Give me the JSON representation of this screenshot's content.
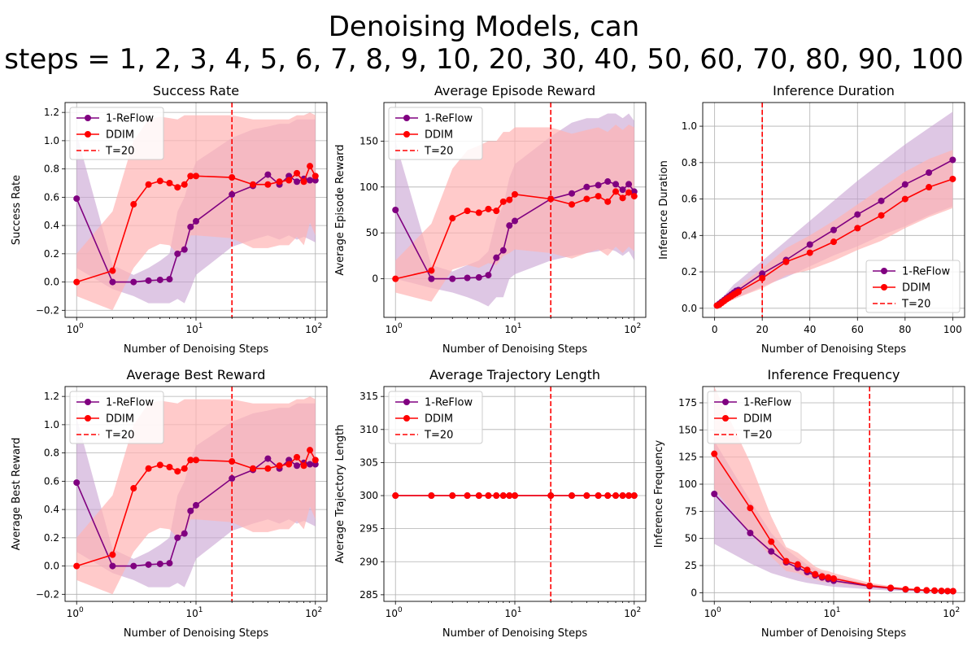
{
  "figure": {
    "title_line1": "Denoising Models, can",
    "title_line2": "steps = 1, 2, 3, 4, 5, 6, 7, 8, 9, 10, 20, 30, 40, 50, 60, 70, 80, 90, 100"
  },
  "colors": {
    "reflow": "#800080",
    "reflow_band": "#c8a2d2",
    "ddim": "#ff0000",
    "ddim_band": "#ffb3b3",
    "threshold": "#ff0000",
    "grid": "#b0b0b0"
  },
  "chart_data": [
    {
      "type": "line",
      "title": "Success Rate",
      "xlabel": "Number of Denoising Steps",
      "ylabel": "Success Rate",
      "xscale": "log",
      "xlim": [
        0.8,
        125
      ],
      "ylim": [
        -0.25,
        1.27
      ],
      "yticks": [
        -0.2,
        0.0,
        0.2,
        0.4,
        0.6,
        0.8,
        1.0,
        1.2
      ],
      "ytick_labels": [
        "−0.2",
        "0.0",
        "0.2",
        "0.4",
        "0.6",
        "0.8",
        "1.0",
        "1.2"
      ],
      "legend_position": "top-left",
      "threshold": {
        "x": 20,
        "label": "T=20"
      },
      "x": [
        1,
        2,
        3,
        4,
        5,
        6,
        7,
        8,
        9,
        10,
        20,
        30,
        40,
        50,
        60,
        70,
        80,
        90,
        100
      ],
      "series": [
        {
          "name": "1-ReFlow",
          "values": [
            0.59,
            0.0,
            0.0,
            0.01,
            0.015,
            0.02,
            0.2,
            0.23,
            0.39,
            0.43,
            0.62,
            0.68,
            0.76,
            0.69,
            0.75,
            0.71,
            0.73,
            0.72,
            0.72
          ],
          "band_upper": [
            1.05,
            0.12,
            0.05,
            0.1,
            0.15,
            0.2,
            0.5,
            0.6,
            0.75,
            0.85,
            1.02,
            1.08,
            1.1,
            1.12,
            1.12,
            1.15,
            1.15,
            1.15,
            1.15
          ],
          "band_lower": [
            0.1,
            -0.05,
            -0.1,
            -0.15,
            -0.15,
            -0.15,
            -0.12,
            -0.15,
            -0.05,
            0.05,
            0.25,
            0.3,
            0.33,
            0.3,
            0.33,
            0.3,
            0.32,
            0.3,
            0.28
          ]
        },
        {
          "name": "DDIM",
          "values": [
            0.0,
            0.08,
            0.55,
            0.69,
            0.715,
            0.7,
            0.67,
            0.69,
            0.75,
            0.75,
            0.74,
            0.69,
            0.69,
            0.71,
            0.72,
            0.77,
            0.71,
            0.82,
            0.75
          ],
          "band_upper": [
            0.2,
            0.5,
            1.0,
            1.15,
            1.17,
            1.16,
            1.15,
            1.18,
            1.18,
            1.18,
            1.18,
            1.15,
            1.15,
            1.15,
            1.15,
            1.18,
            1.18,
            1.2,
            1.18
          ],
          "band_lower": [
            -0.1,
            -0.2,
            0.1,
            0.23,
            0.27,
            0.26,
            0.2,
            0.22,
            0.33,
            0.33,
            0.31,
            0.24,
            0.24,
            0.26,
            0.26,
            0.32,
            0.26,
            0.42,
            0.33
          ]
        }
      ]
    },
    {
      "type": "line",
      "title": "Average Episode Reward",
      "xlabel": "Number of Denoising Steps",
      "ylabel": "Average Episode Reward",
      "xscale": "log",
      "xlim": [
        0.8,
        125
      ],
      "ylim": [
        -42,
        192
      ],
      "yticks": [
        0,
        50,
        100,
        150
      ],
      "ytick_labels": [
        "0",
        "50",
        "100",
        "150"
      ],
      "legend_position": "top-left",
      "threshold": {
        "x": 20,
        "label": "T=20"
      },
      "x": [
        1,
        2,
        3,
        4,
        5,
        6,
        7,
        8,
        9,
        10,
        20,
        30,
        40,
        50,
        60,
        70,
        80,
        90,
        100
      ],
      "series": [
        {
          "name": "1-ReFlow",
          "values": [
            75,
            0,
            0,
            1,
            1.5,
            4,
            23,
            31,
            58,
            63,
            87,
            93,
            100,
            102,
            106,
            103,
            97,
            103,
            95
          ],
          "band_upper": [
            150,
            15,
            8,
            15,
            20,
            30,
            65,
            80,
            110,
            125,
            155,
            170,
            175,
            175,
            180,
            180,
            175,
            180,
            172
          ],
          "band_lower": [
            0,
            -10,
            -15,
            -20,
            -25,
            -30,
            -20,
            -20,
            0,
            5,
            20,
            25,
            28,
            30,
            33,
            30,
            25,
            30,
            20
          ]
        },
        {
          "name": "DDIM",
          "values": [
            0,
            9,
            66,
            74,
            72,
            76,
            74,
            84,
            86,
            92,
            87,
            81,
            87,
            90,
            84,
            95,
            88,
            94,
            90
          ],
          "band_upper": [
            20,
            60,
            120,
            140,
            145,
            150,
            150,
            160,
            160,
            165,
            165,
            158,
            162,
            165,
            160,
            168,
            162,
            168,
            165
          ],
          "band_lower": [
            -15,
            -25,
            10,
            15,
            12,
            17,
            15,
            25,
            28,
            32,
            28,
            22,
            28,
            32,
            25,
            35,
            28,
            35,
            30
          ]
        }
      ]
    },
    {
      "type": "line",
      "title": "Inference Duration",
      "xlabel": "Number of Denoising Steps",
      "ylabel": "Inference Duration",
      "xscale": "linear",
      "xlim": [
        -5,
        105
      ],
      "xticks": [
        0,
        20,
        40,
        60,
        80,
        100
      ],
      "xtick_labels": [
        "0",
        "20",
        "40",
        "60",
        "80",
        "100"
      ],
      "ylim": [
        -0.05,
        1.13
      ],
      "yticks": [
        0.0,
        0.2,
        0.4,
        0.6,
        0.8,
        1.0
      ],
      "ytick_labels": [
        "0.0",
        "0.2",
        "0.4",
        "0.6",
        "0.8",
        "1.0"
      ],
      "legend_position": "bottom-right",
      "threshold": {
        "x": 20,
        "label": "T=20"
      },
      "x": [
        1,
        2,
        3,
        4,
        5,
        6,
        7,
        8,
        9,
        10,
        20,
        30,
        40,
        50,
        60,
        70,
        80,
        90,
        100
      ],
      "series": [
        {
          "name": "1-ReFlow",
          "values": [
            0.015,
            0.025,
            0.035,
            0.045,
            0.055,
            0.065,
            0.075,
            0.085,
            0.095,
            0.1,
            0.19,
            0.265,
            0.35,
            0.43,
            0.515,
            0.59,
            0.68,
            0.745,
            0.815
          ],
          "band_upper": [
            0.025,
            0.04,
            0.055,
            0.07,
            0.085,
            0.1,
            0.115,
            0.13,
            0.14,
            0.15,
            0.26,
            0.37,
            0.48,
            0.59,
            0.7,
            0.8,
            0.9,
            0.99,
            1.08
          ],
          "band_lower": [
            0.008,
            0.015,
            0.02,
            0.028,
            0.035,
            0.04,
            0.045,
            0.05,
            0.055,
            0.06,
            0.12,
            0.17,
            0.23,
            0.29,
            0.34,
            0.4,
            0.45,
            0.51,
            0.56
          ]
        },
        {
          "name": "DDIM",
          "values": [
            0.015,
            0.02,
            0.03,
            0.04,
            0.05,
            0.058,
            0.066,
            0.075,
            0.082,
            0.09,
            0.165,
            0.255,
            0.305,
            0.365,
            0.44,
            0.51,
            0.6,
            0.665,
            0.71
          ],
          "band_upper": [
            0.025,
            0.035,
            0.045,
            0.06,
            0.07,
            0.08,
            0.09,
            0.1,
            0.11,
            0.12,
            0.22,
            0.33,
            0.4,
            0.48,
            0.57,
            0.66,
            0.75,
            0.82,
            0.87
          ],
          "band_lower": [
            0.008,
            0.012,
            0.018,
            0.025,
            0.03,
            0.036,
            0.042,
            0.048,
            0.054,
            0.06,
            0.11,
            0.18,
            0.21,
            0.26,
            0.32,
            0.37,
            0.44,
            0.5,
            0.55
          ]
        }
      ]
    },
    {
      "type": "line",
      "title": "Average Best Reward",
      "xlabel": "Number of Denoising Steps",
      "ylabel": "Average Best Reward",
      "xscale": "log",
      "xlim": [
        0.8,
        125
      ],
      "ylim": [
        -0.25,
        1.27
      ],
      "yticks": [
        -0.2,
        0.0,
        0.2,
        0.4,
        0.6,
        0.8,
        1.0,
        1.2
      ],
      "ytick_labels": [
        "−0.2",
        "0.0",
        "0.2",
        "0.4",
        "0.6",
        "0.8",
        "1.0",
        "1.2"
      ],
      "legend_position": "top-left",
      "threshold": {
        "x": 20,
        "label": "T=20"
      },
      "x": [
        1,
        2,
        3,
        4,
        5,
        6,
        7,
        8,
        9,
        10,
        20,
        30,
        40,
        50,
        60,
        70,
        80,
        90,
        100
      ],
      "series": [
        {
          "name": "1-ReFlow",
          "values": [
            0.59,
            0.0,
            0.0,
            0.01,
            0.015,
            0.02,
            0.2,
            0.23,
            0.39,
            0.43,
            0.62,
            0.68,
            0.76,
            0.69,
            0.75,
            0.71,
            0.73,
            0.72,
            0.72
          ],
          "band_upper": [
            1.05,
            0.12,
            0.05,
            0.1,
            0.15,
            0.2,
            0.5,
            0.6,
            0.75,
            0.85,
            1.02,
            1.08,
            1.1,
            1.12,
            1.12,
            1.15,
            1.15,
            1.15,
            1.15
          ],
          "band_lower": [
            0.1,
            -0.05,
            -0.1,
            -0.15,
            -0.15,
            -0.15,
            -0.12,
            -0.15,
            -0.05,
            0.05,
            0.25,
            0.3,
            0.33,
            0.3,
            0.33,
            0.3,
            0.32,
            0.3,
            0.28
          ]
        },
        {
          "name": "DDIM",
          "values": [
            0.0,
            0.08,
            0.55,
            0.69,
            0.715,
            0.7,
            0.67,
            0.69,
            0.75,
            0.75,
            0.74,
            0.69,
            0.69,
            0.71,
            0.72,
            0.77,
            0.71,
            0.82,
            0.75
          ],
          "band_upper": [
            0.2,
            0.5,
            1.0,
            1.15,
            1.17,
            1.16,
            1.15,
            1.18,
            1.18,
            1.18,
            1.18,
            1.15,
            1.15,
            1.15,
            1.15,
            1.18,
            1.18,
            1.2,
            1.18
          ],
          "band_lower": [
            -0.1,
            -0.2,
            0.1,
            0.23,
            0.27,
            0.26,
            0.2,
            0.22,
            0.33,
            0.33,
            0.31,
            0.24,
            0.24,
            0.26,
            0.26,
            0.32,
            0.26,
            0.42,
            0.33
          ]
        }
      ]
    },
    {
      "type": "line",
      "title": "Average Trajectory Length",
      "xlabel": "Number of Denoising Steps",
      "ylabel": "Average Trajectory Length",
      "xscale": "log",
      "xlim": [
        0.8,
        125
      ],
      "ylim": [
        284,
        316.5
      ],
      "yticks": [
        285,
        290,
        295,
        300,
        305,
        310,
        315
      ],
      "ytick_labels": [
        "285",
        "290",
        "295",
        "300",
        "305",
        "310",
        "315"
      ],
      "legend_position": "top-left",
      "threshold": {
        "x": 20,
        "label": "T=20"
      },
      "x": [
        1,
        2,
        3,
        4,
        5,
        6,
        7,
        8,
        9,
        10,
        20,
        30,
        40,
        50,
        60,
        70,
        80,
        90,
        100
      ],
      "series": [
        {
          "name": "1-ReFlow",
          "values": [
            300,
            300,
            300,
            300,
            300,
            300,
            300,
            300,
            300,
            300,
            300,
            300,
            300,
            300,
            300,
            300,
            300,
            300,
            300
          ]
        },
        {
          "name": "DDIM",
          "values": [
            300,
            300,
            300,
            300,
            300,
            300,
            300,
            300,
            300,
            300,
            300,
            300,
            300,
            300,
            300,
            300,
            300,
            300,
            300
          ]
        }
      ]
    },
    {
      "type": "line",
      "title": "Inference Frequency",
      "xlabel": "Number of Denoising Steps",
      "ylabel": "Inference Frequency",
      "xscale": "log",
      "xlim": [
        0.8,
        125
      ],
      "ylim": [
        -8,
        190
      ],
      "yticks": [
        0,
        25,
        50,
        75,
        100,
        125,
        150,
        175
      ],
      "ytick_labels": [
        "0",
        "25",
        "50",
        "75",
        "100",
        "125",
        "150",
        "175"
      ],
      "legend_position": "top-left",
      "threshold": {
        "x": 20,
        "label": "T=20"
      },
      "x": [
        1,
        2,
        3,
        4,
        5,
        6,
        7,
        8,
        9,
        10,
        20,
        30,
        40,
        50,
        60,
        70,
        80,
        90,
        100
      ],
      "series": [
        {
          "name": "1-ReFlow",
          "values": [
            91,
            55,
            38,
            28,
            23,
            19,
            16,
            14,
            12.5,
            11,
            6,
            4,
            3,
            2.5,
            2,
            1.8,
            1.5,
            1.4,
            1.3
          ],
          "band_upper": [
            140,
            85,
            55,
            40,
            32,
            26,
            22,
            19,
            17,
            15,
            8,
            5.5,
            4,
            3.3,
            2.7,
            2.4,
            2,
            1.8,
            1.7
          ],
          "band_lower": [
            45,
            27,
            18,
            14,
            11,
            9,
            8,
            7,
            6,
            5.5,
            3,
            2,
            1.6,
            1.3,
            1.1,
            1,
            0.8,
            0.7,
            0.6
          ]
        },
        {
          "name": "DDIM",
          "values": [
            128,
            78,
            47,
            29,
            26,
            21,
            17,
            15,
            14,
            13,
            6.5,
            4.5,
            3.2,
            2.7,
            2.2,
            1.9,
            1.7,
            1.5,
            1.4
          ],
          "band_upper": [
            190,
            120,
            70,
            42,
            37,
            30,
            24,
            21,
            20,
            18,
            9,
            6,
            4.5,
            3.7,
            3,
            2.6,
            2.3,
            2,
            1.9
          ],
          "band_lower": [
            95,
            55,
            33,
            20,
            18,
            14,
            12,
            10,
            9.5,
            9,
            4.5,
            3,
            2.2,
            1.8,
            1.5,
            1.3,
            1.1,
            1,
            0.9
          ]
        }
      ]
    }
  ]
}
